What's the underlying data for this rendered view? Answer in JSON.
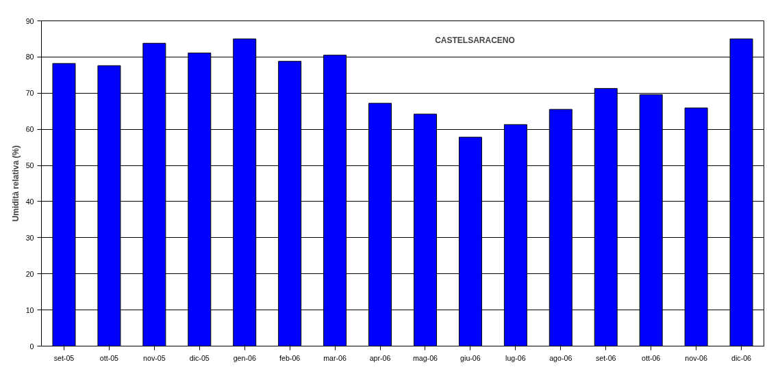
{
  "chart_data": {
    "type": "bar",
    "title": "CASTELSARACENO",
    "ylabel": "Umidità relativa (%)",
    "categories": [
      "set-05",
      "ott-05",
      "nov-05",
      "dic-05",
      "gen-06",
      "feb-06",
      "mar-06",
      "apr-06",
      "mag-06",
      "giu-06",
      "lug-06",
      "ago-06",
      "set-06",
      "ott-06",
      "nov-06",
      "dic-06"
    ],
    "values": [
      78.2,
      77.6,
      83.8,
      81.1,
      85.0,
      78.8,
      80.5,
      67.2,
      64.2,
      57.8,
      61.3,
      65.5,
      71.3,
      69.6,
      65.9,
      85.0
    ],
    "color": "#0000ff",
    "ylim": [
      0,
      90
    ],
    "yticks": [
      0,
      10,
      20,
      30,
      40,
      50,
      60,
      70,
      80,
      90
    ],
    "grid": "y"
  }
}
